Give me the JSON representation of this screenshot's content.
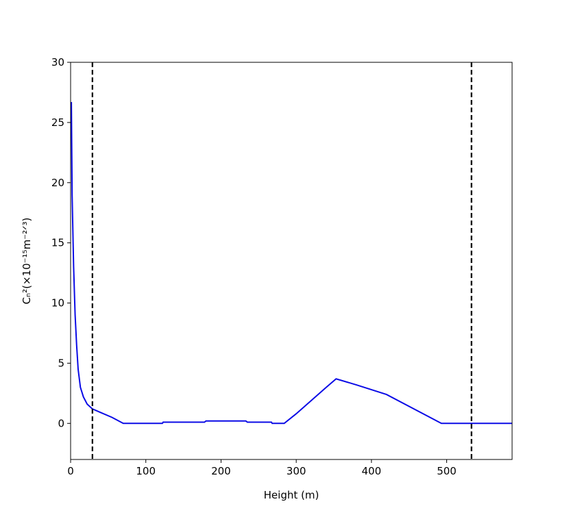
{
  "chart_data": {
    "type": "line",
    "xlabel": "Height (m)",
    "ylabel": "Cₙ²(×10⁻¹⁵m⁻²ᐟ³)",
    "x": [
      1,
      2,
      4,
      6,
      8,
      10,
      13,
      17,
      22,
      29,
      40,
      55,
      70,
      122,
      123,
      178,
      180,
      233,
      235,
      267,
      268,
      284,
      300,
      320,
      340,
      353,
      380,
      420,
      493,
      587
    ],
    "series": [
      {
        "color": "#0a0ae6",
        "values": [
          26.7,
          19,
          13,
          9,
          6.5,
          4.5,
          3.0,
          2.2,
          1.6,
          1.2,
          0.9,
          0.5,
          0,
          0,
          0.1,
          0.1,
          0.2,
          0.2,
          0.1,
          0.1,
          0,
          0,
          0.8,
          1.9,
          3.0,
          3.7,
          3.2,
          2.4,
          0,
          0
        ]
      }
    ],
    "vlines": [
      29,
      533
    ],
    "vline_color": "#000000",
    "xlim": [
      0,
      587
    ],
    "ylim": [
      -3,
      30
    ],
    "xticks": [
      0,
      100,
      200,
      300,
      400,
      500
    ],
    "yticks": [
      0,
      5,
      10,
      15,
      20,
      25,
      30
    ]
  }
}
